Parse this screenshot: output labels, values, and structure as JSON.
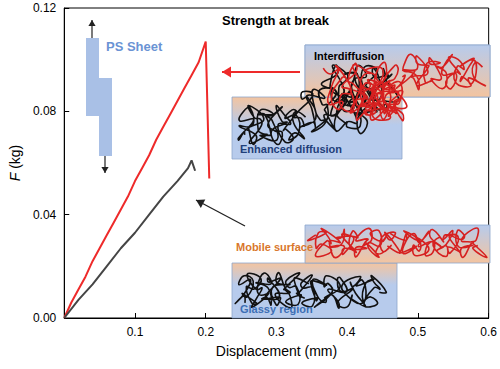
{
  "chart_data": {
    "type": "line",
    "xlabel": "Displacement (mm)",
    "ylabel": "F (kg)",
    "xlim": [
      0,
      0.6
    ],
    "xticks": [
      0.1,
      0.2,
      0.3,
      0.4,
      0.5,
      0.6
    ],
    "ylim": [
      0,
      0.12
    ],
    "yticks": [
      {
        "value": 0,
        "label": "0.00"
      },
      {
        "value": 0.04,
        "label": "0.04"
      },
      {
        "value": 0.08,
        "label": "0.08"
      },
      {
        "value": 0.12,
        "label": "0.12"
      }
    ],
    "grid": false,
    "series": [
      {
        "color": "#ee2a2a",
        "x": [
          0,
          0.01,
          0.02,
          0.03,
          0.04,
          0.05,
          0.06,
          0.07,
          0.08,
          0.09,
          0.1,
          0.11,
          0.12,
          0.13,
          0.14,
          0.15,
          0.16,
          0.17,
          0.18,
          0.19,
          0.2,
          0.205
        ],
        "values": [
          0,
          0.006,
          0.011,
          0.016,
          0.022,
          0.027,
          0.032,
          0.037,
          0.042,
          0.047,
          0.053,
          0.058,
          0.063,
          0.069,
          0.074,
          0.079,
          0.084,
          0.089,
          0.094,
          0.099,
          0.107,
          0.054
        ]
      },
      {
        "color": "#454545",
        "x": [
          0,
          0.02,
          0.04,
          0.06,
          0.08,
          0.1,
          0.12,
          0.14,
          0.16,
          0.175,
          0.18,
          0.185
        ],
        "values": [
          0,
          0.007,
          0.013,
          0.02,
          0.027,
          0.033,
          0.04,
          0.047,
          0.053,
          0.058,
          0.061,
          0.057
        ]
      }
    ],
    "annotations": {
      "heading": "Strength at break",
      "inset": "PS Sheet",
      "upper_schematic": [
        "Interdiffusion",
        "Enhanced diffusion"
      ],
      "lower_schematic": [
        "Mobile surface",
        "Glassy region"
      ]
    }
  }
}
